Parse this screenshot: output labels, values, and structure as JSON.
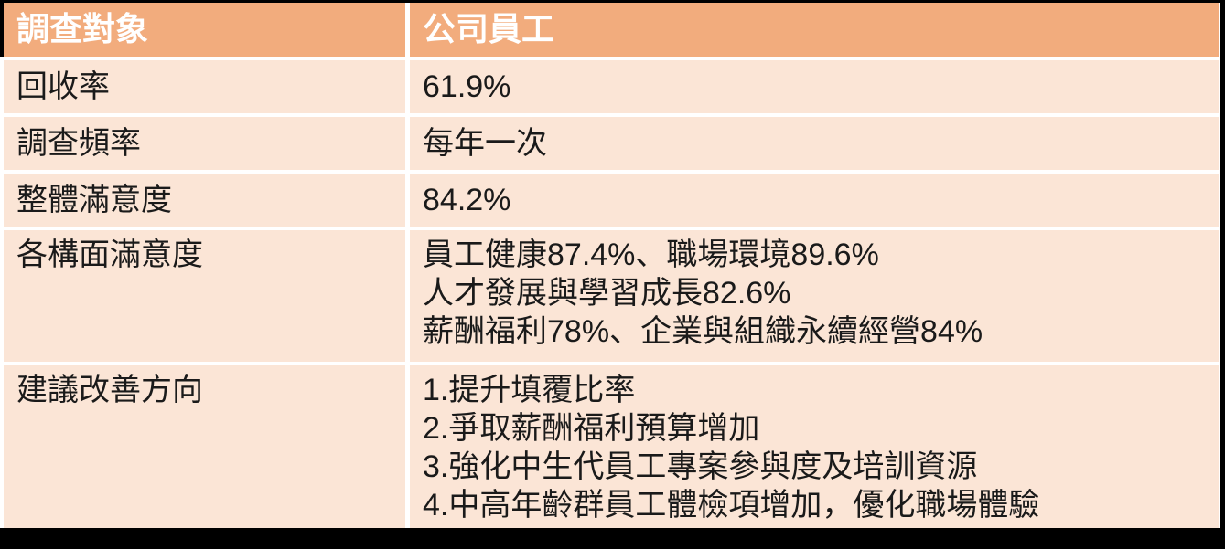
{
  "table": {
    "header": {
      "col1": "調查對象",
      "col2": "公司員工"
    },
    "rows": [
      {
        "label": "回收率",
        "lines": [
          "61.9%"
        ]
      },
      {
        "label": "調查頻率",
        "lines": [
          "每年一次"
        ]
      },
      {
        "label": "整體滿意度",
        "lines": [
          "84.2%"
        ]
      },
      {
        "label": "各構面滿意度",
        "lines": [
          "員工健康87.4%、職場環境89.6%",
          "人才發展與學習成長82.6%",
          "薪酬福利78%、企業與組織永續經營84%"
        ]
      },
      {
        "label": "建議改善方向",
        "lines": [
          "1.提升填覆比率",
          "2.爭取薪酬福利預算增加",
          "3.強化中生代員工專案參與度及培訓資源",
          "4.中高年齡群員工體檢項增加，優化職場體驗"
        ]
      }
    ],
    "colors": {
      "header_bg": "#F2AC7D",
      "row_bg": "#FBE5D6",
      "header_text": "#FFFFFF",
      "body_text": "#1A1A1A",
      "frame": "#000000"
    }
  }
}
